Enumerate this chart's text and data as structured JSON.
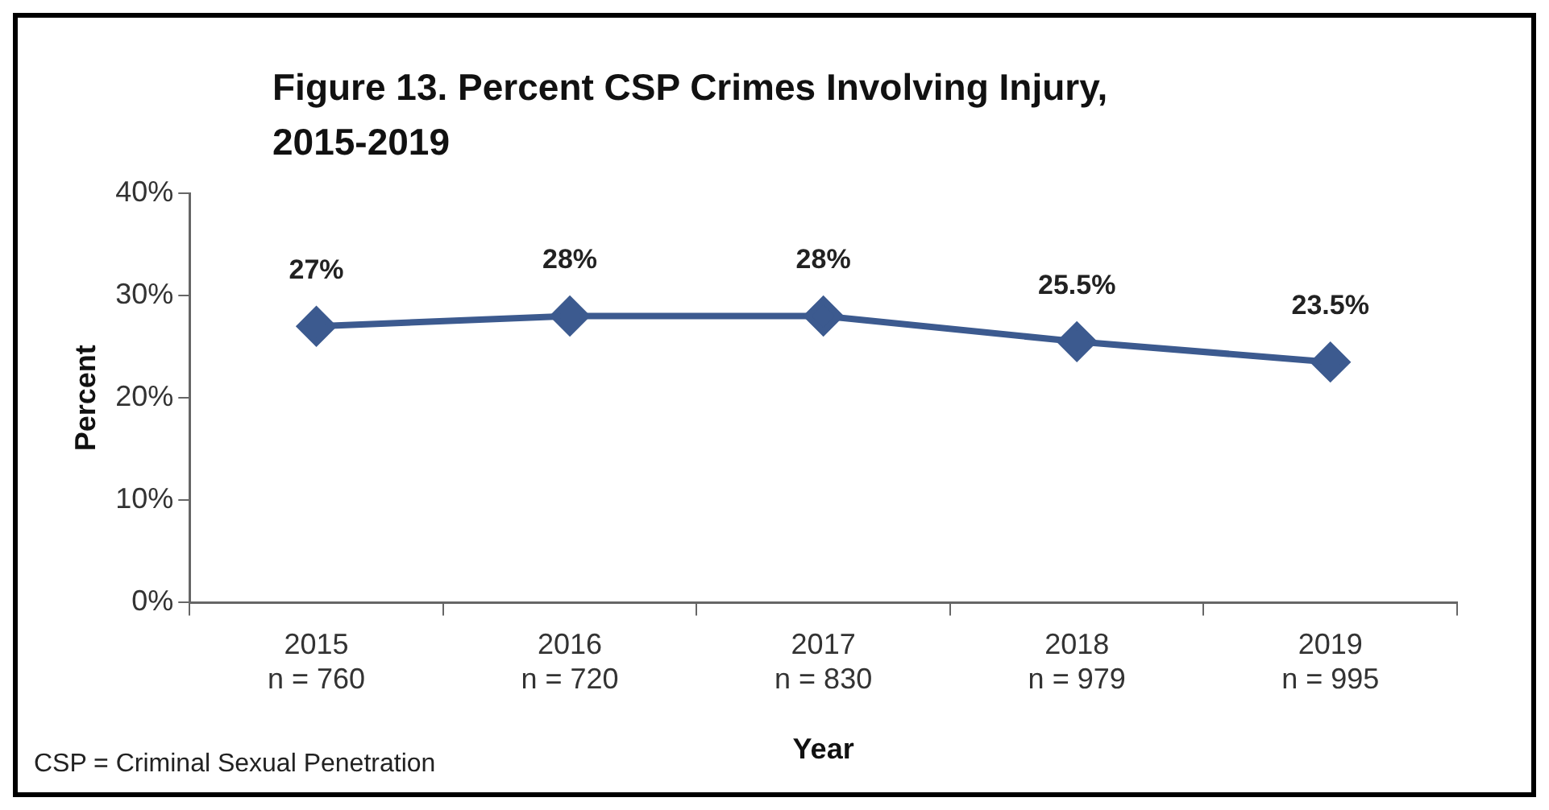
{
  "chart_data": {
    "type": "line",
    "title": "Figure 13.  Percent CSP Crimes Involving Injury, 2015-2019",
    "xlabel": "Year",
    "ylabel": "Percent",
    "categories": [
      "2015\nn = 760",
      "2016\nn = 720",
      "2017\nn = 830",
      "2018\nn = 979",
      "2019\nn = 995"
    ],
    "series": [
      {
        "color": "#3c5a8f",
        "values": [
          27,
          28,
          28,
          25.5,
          23.5
        ],
        "value_labels": [
          "27%",
          "28%",
          "28%",
          "25.5%",
          "23.5%"
        ]
      }
    ],
    "ylim": [
      0,
      40
    ],
    "yticks": [
      {
        "value": 0,
        "label": "0%"
      },
      {
        "value": 10,
        "label": "10%"
      },
      {
        "value": 20,
        "label": "20%"
      },
      {
        "value": 30,
        "label": "30%"
      },
      {
        "value": 40,
        "label": "40%"
      }
    ],
    "grid": false,
    "legend": false,
    "marker": "diamond",
    "line_style": "solid",
    "annotations": [
      "CSP = Criminal Sexual Penetration"
    ]
  }
}
